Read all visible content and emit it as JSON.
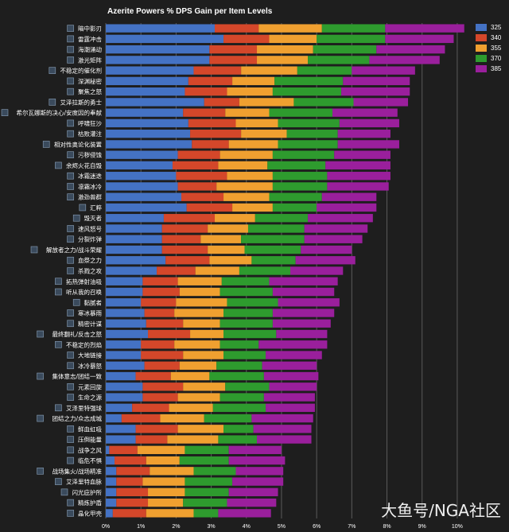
{
  "chart_data": {
    "type": "bar",
    "stacked": true,
    "orientation": "horizontal",
    "title": "Azerite Powers % DPS Gain per Item Levels",
    "xlim": [
      0,
      10.5
    ],
    "x_ticks": [
      "0%",
      "1%",
      "2%",
      "3%",
      "4%",
      "5%",
      "6%",
      "7%",
      "8%",
      "9%",
      "10%"
    ],
    "grid": true,
    "legend_position": "top-right",
    "categories": [
      "暗中影刃",
      "雷霆冲击",
      "海潮涌动",
      "激光矩阵",
      "不稳定的催化剂",
      "深渊秘密",
      "聚焦之怒",
      "艾泽拉斯的勇士",
      "希尔瓦娜斯的决心/安度因的奉献",
      "呼啸狂沙",
      "枯败灌注",
      "相对性奥论化装置",
      "污秽侵蚀",
      "余烬火花自毁",
      "冰霜迷迭",
      "凛霜冰冷",
      "激劲兽群",
      "汇粹",
      "毁灭者",
      "速风怒号",
      "分裂炸弹",
      "解放者之力/战斗荣耀",
      "血祭之力",
      "杀戮之攻",
      "拓热弹射油吸",
      "听从我的召唤",
      "黏腻者",
      "寒冰暴雨",
      "精密计谋",
      "最终翻礼/反击之怒",
      "不稳定的烈焰",
      "大地链接",
      "冰冷暴怒",
      "集体意志/团结一致",
      "元素回旋",
      "生命之源",
      "艾泽里特强球",
      "团结之力/众志成城",
      "鲜血虹吸",
      "压倒能量",
      "战争之风",
      "临危不惧",
      "战场集火/战场精准",
      "艾泽里特血脉",
      "闪光庇护所",
      "精炼护盾",
      "晶化甲壳"
    ],
    "series": [
      {
        "name": "325",
        "color": "#4472c4",
        "values": [
          3.1,
          3.35,
          2.95,
          2.95,
          2.5,
          2.35,
          2.25,
          2.8,
          2.2,
          2.35,
          2.4,
          2.45,
          2.05,
          1.9,
          2.0,
          2.05,
          2.15,
          2.3,
          1.65,
          1.6,
          1.6,
          1.6,
          1.7,
          1.45,
          1.05,
          1.05,
          1.0,
          1.1,
          1.15,
          1.2,
          1.0,
          1.0,
          1.1,
          0.85,
          1.05,
          1.05,
          0.75,
          0.45,
          0.85,
          0.85,
          0.1,
          0.25,
          0.3,
          0.3,
          0.3,
          0.3,
          0.2
        ]
      },
      {
        "name": "340",
        "color": "#d4472a",
        "values": [
          1.25,
          1.3,
          1.35,
          1.35,
          1.35,
          1.25,
          1.2,
          1.0,
          1.2,
          1.35,
          1.45,
          1.05,
          1.2,
          1.3,
          1.45,
          1.1,
          1.2,
          1.3,
          1.45,
          1.3,
          1.1,
          1.3,
          1.25,
          1.1,
          1.0,
          1.05,
          1.0,
          0.85,
          1.05,
          1.2,
          0.95,
          1.2,
          1.0,
          1.0,
          1.15,
          1.0,
          1.05,
          1.1,
          1.2,
          0.9,
          0.8,
          0.9,
          0.95,
          0.75,
          0.9,
          0.9,
          0.95
        ]
      },
      {
        "name": "355",
        "color": "#f0a030",
        "values": [
          1.8,
          1.35,
          1.6,
          1.45,
          1.6,
          1.2,
          1.3,
          1.55,
          1.25,
          1.2,
          1.3,
          1.4,
          1.5,
          1.4,
          1.3,
          1.6,
          1.3,
          1.15,
          1.15,
          1.15,
          1.15,
          1.05,
          1.2,
          1.25,
          1.25,
          1.15,
          1.45,
          1.4,
          1.05,
          0.95,
          1.3,
          1.15,
          1.05,
          1.1,
          1.2,
          1.2,
          1.25,
          1.25,
          1.3,
          1.45,
          1.35,
          0.95,
          1.25,
          1.2,
          1.05,
          1.0,
          1.35
        ]
      },
      {
        "name": "370",
        "color": "#2e9b2e",
        "values": [
          1.8,
          1.95,
          1.8,
          1.75,
          1.55,
          1.95,
          1.95,
          1.7,
          1.8,
          1.75,
          1.45,
          1.7,
          1.75,
          1.65,
          1.55,
          1.55,
          1.5,
          1.25,
          1.5,
          1.6,
          1.8,
          1.6,
          1.25,
          1.45,
          1.35,
          1.5,
          1.45,
          1.4,
          1.5,
          1.5,
          1.1,
          1.2,
          1.3,
          1.55,
          1.25,
          1.25,
          1.5,
          1.35,
          0.85,
          1.1,
          1.25,
          1.4,
          1.2,
          1.35,
          1.25,
          1.25,
          0.7
        ]
      },
      {
        "name": "385",
        "color": "#9a1f9c",
        "values": [
          2.25,
          1.95,
          1.95,
          2.0,
          1.8,
          1.9,
          1.95,
          1.55,
          1.85,
          1.7,
          1.5,
          1.75,
          1.6,
          1.85,
          1.8,
          1.75,
          1.55,
          1.7,
          1.85,
          1.8,
          1.65,
          1.45,
          1.7,
          1.5,
          1.95,
          1.75,
          1.75,
          1.75,
          1.65,
          1.45,
          1.95,
          1.6,
          1.55,
          1.55,
          1.35,
          1.45,
          1.4,
          1.75,
          1.65,
          1.55,
          1.5,
          1.6,
          1.35,
          1.45,
          1.4,
          1.4,
          1.5
        ]
      }
    ]
  },
  "watermark": "大鱼号/NGA社区"
}
